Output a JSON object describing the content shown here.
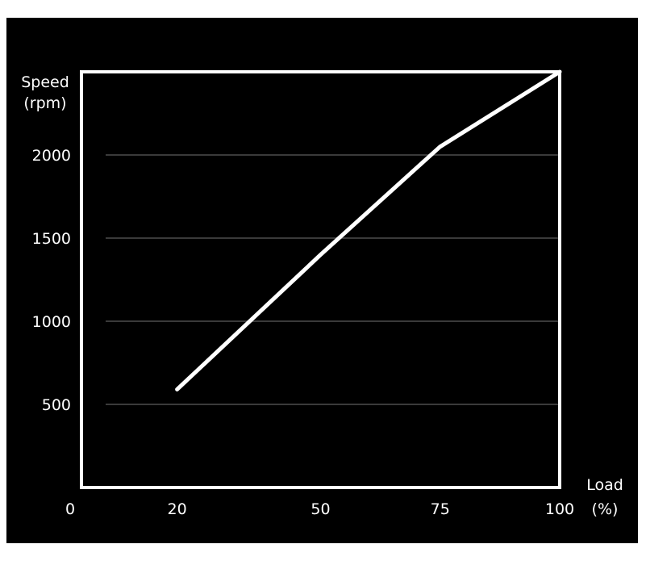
{
  "chart_data": {
    "type": "line",
    "title": "",
    "ylabel_line1": "Speed",
    "ylabel_line2": "(rpm)",
    "xlabel_line1": "Load",
    "xlabel_line2": "(%)",
    "xlim": [
      0,
      100
    ],
    "ylim": [
      0,
      2500
    ],
    "x_ticks": [
      0,
      20,
      50,
      75,
      100
    ],
    "y_ticks": [
      500,
      1000,
      1500,
      2000
    ],
    "grid": "horizontal",
    "series": [
      {
        "x": [
          20,
          50,
          75,
          100
        ],
        "y": [
          590,
          1400,
          2050,
          2500
        ]
      }
    ],
    "colors": {
      "background": "#000000",
      "line": "#ffffff",
      "grid": "#3a3a3a"
    }
  }
}
